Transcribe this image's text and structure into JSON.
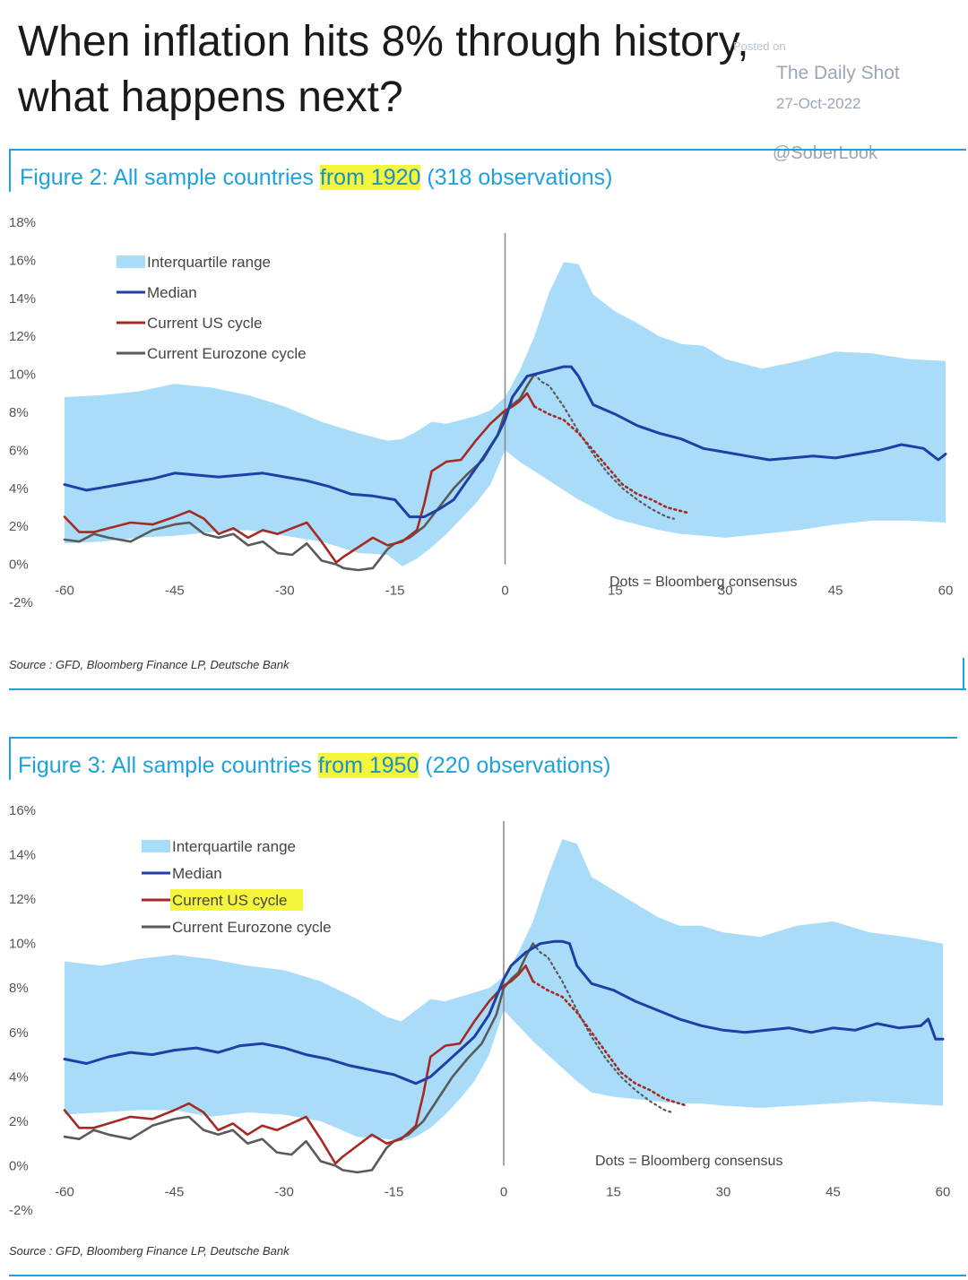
{
  "headline": {
    "line1": "When inflation hits 8% through history,",
    "line2": "what happens next?"
  },
  "watermark": {
    "posted": "Posted on",
    "site": "The Daily Shot",
    "date": "27-Oct-2022",
    "handle": "@SoberLook"
  },
  "colors": {
    "accent": "#1ea1dc",
    "iqr": "#a8dcf8",
    "median": "#1f3fa6",
    "us": "#a52a24",
    "ez": "#5a5a5a",
    "highlight": "#f5f53c"
  },
  "figures": [
    {
      "title_pre": "Figure 2: All sample countries ",
      "title_hl": "from 1920",
      "title_post": " (318 observations)",
      "source": "Source : GFD, Bloomberg Finance LP, Deutsche Bank",
      "legend": [
        "Interquartile range",
        "Median",
        "Current US cycle",
        "Current Eurozone cycle"
      ],
      "note": "Dots = Bloomberg consensus"
    },
    {
      "title_pre": "Figure 3: All sample countries ",
      "title_hl": "from 1950",
      "title_post": " (220 observations)",
      "source": "Source : GFD, Bloomberg Finance LP, Deutsche Bank",
      "legend": [
        "Interquartile range",
        "Median",
        "Current US cycle",
        "Current Eurozone cycle"
      ],
      "note": "Dots = Bloomberg consensus"
    }
  ],
  "chart_data": [
    {
      "type": "area",
      "title": "Figure 2: All sample countries from 1920 (318 observations)",
      "xlabel": "",
      "ylabel": "",
      "xlim": [
        -60,
        60
      ],
      "ylim": [
        -2,
        18
      ],
      "x_ticks": [
        -60,
        -45,
        -30,
        -15,
        0,
        15,
        30,
        45,
        60
      ],
      "y_ticks": [
        -2,
        0,
        2,
        4,
        6,
        8,
        10,
        12,
        14,
        16,
        18
      ],
      "y_tick_labels": [
        "-2%",
        "0%",
        "2%",
        "4%",
        "6%",
        "8%",
        "10%",
        "12%",
        "14%",
        "16%",
        "18%"
      ],
      "legend_position": "top-left",
      "iqr": {
        "name": "Interquartile range",
        "x": [
          -60,
          -55,
          -50,
          -45,
          -40,
          -35,
          -30,
          -25,
          -20,
          -16,
          -14,
          -12,
          -10,
          -8,
          -6,
          -4,
          -2,
          0,
          2,
          4,
          6,
          8,
          10,
          12,
          15,
          18,
          21,
          24,
          27,
          30,
          35,
          40,
          45,
          50,
          55,
          60
        ],
        "upper": [
          8.8,
          8.9,
          9.1,
          9.5,
          9.3,
          8.9,
          8.3,
          7.5,
          6.9,
          6.5,
          6.6,
          7.0,
          7.5,
          7.4,
          7.6,
          7.8,
          8.1,
          8.8,
          10.2,
          12.0,
          14.3,
          15.9,
          15.8,
          14.2,
          13.3,
          12.7,
          12.0,
          11.6,
          11.5,
          10.8,
          10.3,
          10.7,
          11.2,
          11.1,
          10.8,
          10.7
        ],
        "lower": [
          1.1,
          1.2,
          1.4,
          1.5,
          1.7,
          1.8,
          1.5,
          1.2,
          0.6,
          0.5,
          -0.1,
          0.3,
          0.9,
          1.6,
          2.4,
          3.2,
          4.2,
          6.0,
          5.4,
          4.9,
          4.4,
          3.9,
          3.4,
          3.0,
          2.4,
          2.1,
          1.8,
          1.6,
          1.5,
          1.4,
          1.6,
          1.8,
          2.1,
          2.3,
          2.3,
          2.2
        ]
      },
      "series": [
        {
          "name": "Median",
          "style": "solid",
          "x": [
            -60,
            -57,
            -54,
            -51,
            -48,
            -45,
            -42,
            -39,
            -36,
            -33,
            -30,
            -27,
            -24,
            -21,
            -18,
            -15,
            -13,
            -11,
            -9,
            -7,
            -5,
            -3,
            -1,
            0,
            1,
            3,
            5,
            7,
            8,
            9,
            10,
            12,
            15,
            18,
            21,
            24,
            27,
            30,
            33,
            36,
            39,
            42,
            45,
            48,
            51,
            54,
            57,
            59,
            60
          ],
          "y": [
            4.2,
            3.9,
            4.1,
            4.3,
            4.5,
            4.8,
            4.7,
            4.6,
            4.7,
            4.8,
            4.6,
            4.4,
            4.1,
            3.7,
            3.6,
            3.4,
            2.5,
            2.5,
            2.9,
            3.4,
            4.5,
            5.6,
            6.8,
            7.6,
            8.8,
            9.9,
            10.1,
            10.3,
            10.4,
            10.4,
            9.9,
            8.4,
            7.9,
            7.3,
            6.9,
            6.6,
            6.1,
            5.9,
            5.7,
            5.5,
            5.6,
            5.7,
            5.6,
            5.8,
            6.0,
            6.3,
            6.1,
            5.5,
            5.8
          ]
        },
        {
          "name": "Current US cycle",
          "style": "solid",
          "x": [
            -60,
            -58,
            -56,
            -54,
            -51,
            -48,
            -45,
            -43,
            -41,
            -39,
            -37,
            -35,
            -33,
            -31,
            -29,
            -27,
            -25,
            -23,
            -22,
            -20,
            -18,
            -16,
            -14,
            -12,
            -11,
            -10,
            -8,
            -6,
            -4,
            -2,
            0,
            1,
            2,
            3,
            4
          ],
          "y": [
            2.5,
            1.7,
            1.7,
            1.9,
            2.2,
            2.1,
            2.5,
            2.8,
            2.4,
            1.6,
            1.9,
            1.4,
            1.8,
            1.6,
            1.9,
            2.2,
            1.2,
            0.1,
            0.4,
            0.9,
            1.4,
            1.0,
            1.2,
            1.8,
            3.2,
            4.9,
            5.4,
            5.5,
            6.5,
            7.4,
            8.1,
            8.3,
            8.6,
            9.0,
            8.3
          ]
        },
        {
          "name": "Current Eurozone cycle",
          "style": "solid",
          "x": [
            -60,
            -58,
            -56,
            -54,
            -51,
            -48,
            -45,
            -43,
            -41,
            -39,
            -37,
            -35,
            -33,
            -31,
            -29,
            -27,
            -25,
            -23,
            -22,
            -20,
            -18,
            -16,
            -15,
            -13,
            -11,
            -9,
            -7,
            -5,
            -3,
            -1,
            0,
            1,
            2,
            3,
            4
          ],
          "y": [
            1.3,
            1.2,
            1.6,
            1.4,
            1.2,
            1.8,
            2.1,
            2.2,
            1.6,
            1.4,
            1.6,
            1.0,
            1.2,
            0.6,
            0.5,
            1.1,
            0.2,
            0.0,
            -0.2,
            -0.3,
            -0.2,
            0.8,
            1.1,
            1.4,
            2.0,
            3.0,
            4.0,
            4.8,
            5.5,
            6.8,
            8.0,
            8.4,
            8.7,
            9.4,
            10.0
          ]
        },
        {
          "name": "US consensus",
          "style": "dotted",
          "x": [
            4,
            6,
            8,
            10,
            12,
            14,
            16,
            18,
            20,
            22,
            24,
            25
          ],
          "y": [
            8.3,
            7.9,
            7.6,
            6.9,
            6.0,
            5.1,
            4.2,
            3.7,
            3.4,
            3.0,
            2.8,
            2.7
          ]
        },
        {
          "name": "Eurozone consensus",
          "style": "dotted",
          "x": [
            4,
            5,
            6,
            8,
            10,
            12,
            14,
            16,
            18,
            20,
            22,
            23
          ],
          "y": [
            10.0,
            9.6,
            9.4,
            8.3,
            7.0,
            5.8,
            4.8,
            4.0,
            3.4,
            2.9,
            2.5,
            2.4
          ]
        }
      ],
      "annotation": "Dots = Bloomberg consensus"
    },
    {
      "type": "area",
      "title": "Figure 3: All sample countries from 1950 (220 observations)",
      "xlabel": "",
      "ylabel": "",
      "xlim": [
        -60,
        60
      ],
      "ylim": [
        -2,
        16
      ],
      "x_ticks": [
        -60,
        -45,
        -30,
        -15,
        0,
        15,
        30,
        45,
        60
      ],
      "y_ticks": [
        -2,
        0,
        2,
        4,
        6,
        8,
        10,
        12,
        14,
        16
      ],
      "y_tick_labels": [
        "-2%",
        "0%",
        "2%",
        "4%",
        "6%",
        "8%",
        "10%",
        "12%",
        "14%",
        "16%"
      ],
      "legend_position": "top-left",
      "iqr": {
        "name": "Interquartile range",
        "x": [
          -60,
          -55,
          -50,
          -45,
          -40,
          -35,
          -30,
          -25,
          -20,
          -16,
          -14,
          -12,
          -10,
          -8,
          -6,
          -4,
          -2,
          0,
          2,
          4,
          6,
          8,
          10,
          12,
          15,
          18,
          21,
          24,
          27,
          30,
          35,
          40,
          45,
          50,
          55,
          60
        ],
        "upper": [
          9.2,
          9.0,
          9.3,
          9.5,
          9.3,
          9.0,
          8.8,
          8.3,
          7.5,
          6.7,
          6.5,
          7.0,
          7.5,
          7.4,
          7.6,
          7.8,
          8.0,
          8.5,
          9.6,
          11.0,
          13.0,
          14.7,
          14.5,
          13.0,
          12.4,
          11.8,
          11.2,
          10.8,
          10.8,
          10.5,
          10.3,
          10.8,
          11.0,
          10.5,
          10.3,
          10.0
        ],
        "lower": [
          2.3,
          2.4,
          2.5,
          2.5,
          2.2,
          2.4,
          2.3,
          2.0,
          1.3,
          1.2,
          1.1,
          1.3,
          1.7,
          2.3,
          3.0,
          3.8,
          5.0,
          7.0,
          6.3,
          5.6,
          5.0,
          4.4,
          3.8,
          3.3,
          3.1,
          3.0,
          2.9,
          2.8,
          2.8,
          2.7,
          2.6,
          2.7,
          2.8,
          2.9,
          2.8,
          2.7
        ]
      },
      "series": [
        {
          "name": "Median",
          "style": "solid",
          "x": [
            -60,
            -57,
            -54,
            -51,
            -48,
            -45,
            -42,
            -39,
            -36,
            -33,
            -30,
            -27,
            -24,
            -21,
            -18,
            -15,
            -12,
            -10,
            -8,
            -6,
            -4,
            -2,
            0,
            1,
            3,
            5,
            7,
            8,
            9,
            10,
            12,
            15,
            18,
            21,
            24,
            27,
            30,
            33,
            36,
            39,
            42,
            45,
            48,
            51,
            54,
            57,
            58,
            59,
            60
          ],
          "y": [
            4.8,
            4.6,
            4.9,
            5.1,
            5.0,
            5.2,
            5.3,
            5.1,
            5.4,
            5.5,
            5.3,
            5.0,
            4.8,
            4.5,
            4.3,
            4.1,
            3.7,
            4.0,
            4.6,
            5.2,
            5.8,
            6.8,
            8.4,
            9.0,
            9.6,
            10.0,
            10.1,
            10.1,
            10.0,
            9.0,
            8.2,
            7.9,
            7.4,
            7.0,
            6.6,
            6.3,
            6.1,
            6.0,
            6.1,
            6.2,
            6.0,
            6.2,
            6.1,
            6.4,
            6.2,
            6.3,
            6.6,
            5.7,
            5.7
          ]
        },
        {
          "name": "Current US cycle",
          "style": "solid",
          "x": [
            -60,
            -58,
            -56,
            -54,
            -51,
            -48,
            -45,
            -43,
            -41,
            -39,
            -37,
            -35,
            -33,
            -31,
            -29,
            -27,
            -25,
            -23,
            -22,
            -20,
            -18,
            -16,
            -14,
            -12,
            -11,
            -10,
            -8,
            -6,
            -4,
            -2,
            0,
            1,
            2,
            3,
            4
          ],
          "y": [
            2.5,
            1.7,
            1.7,
            1.9,
            2.2,
            2.1,
            2.5,
            2.8,
            2.4,
            1.6,
            1.9,
            1.4,
            1.8,
            1.6,
            1.9,
            2.2,
            1.2,
            0.1,
            0.4,
            0.9,
            1.4,
            1.0,
            1.2,
            1.8,
            3.2,
            4.9,
            5.4,
            5.5,
            6.5,
            7.4,
            8.1,
            8.3,
            8.6,
            9.0,
            8.3
          ]
        },
        {
          "name": "Current Eurozone cycle",
          "style": "solid",
          "x": [
            -60,
            -58,
            -56,
            -54,
            -51,
            -48,
            -45,
            -43,
            -41,
            -39,
            -37,
            -35,
            -33,
            -31,
            -29,
            -27,
            -25,
            -23,
            -22,
            -20,
            -18,
            -16,
            -15,
            -13,
            -11,
            -9,
            -7,
            -5,
            -3,
            -1,
            0,
            1,
            2,
            3,
            4
          ],
          "y": [
            1.3,
            1.2,
            1.6,
            1.4,
            1.2,
            1.8,
            2.1,
            2.2,
            1.6,
            1.4,
            1.6,
            1.0,
            1.2,
            0.6,
            0.5,
            1.1,
            0.2,
            0.0,
            -0.2,
            -0.3,
            -0.2,
            0.8,
            1.1,
            1.4,
            2.0,
            3.0,
            4.0,
            4.8,
            5.5,
            6.8,
            8.0,
            8.4,
            8.7,
            9.4,
            10.0
          ]
        },
        {
          "name": "US consensus",
          "style": "dotted",
          "x": [
            4,
            6,
            8,
            10,
            12,
            14,
            16,
            18,
            20,
            22,
            24,
            25
          ],
          "y": [
            8.3,
            7.9,
            7.6,
            6.9,
            6.0,
            5.1,
            4.2,
            3.7,
            3.4,
            3.0,
            2.8,
            2.7
          ]
        },
        {
          "name": "Eurozone consensus",
          "style": "dotted",
          "x": [
            4,
            5,
            6,
            8,
            10,
            12,
            14,
            16,
            18,
            20,
            22,
            23
          ],
          "y": [
            10.0,
            9.6,
            9.4,
            8.3,
            7.0,
            5.8,
            4.8,
            4.0,
            3.4,
            2.9,
            2.5,
            2.4
          ]
        }
      ],
      "annotation": "Dots = Bloomberg consensus"
    }
  ]
}
